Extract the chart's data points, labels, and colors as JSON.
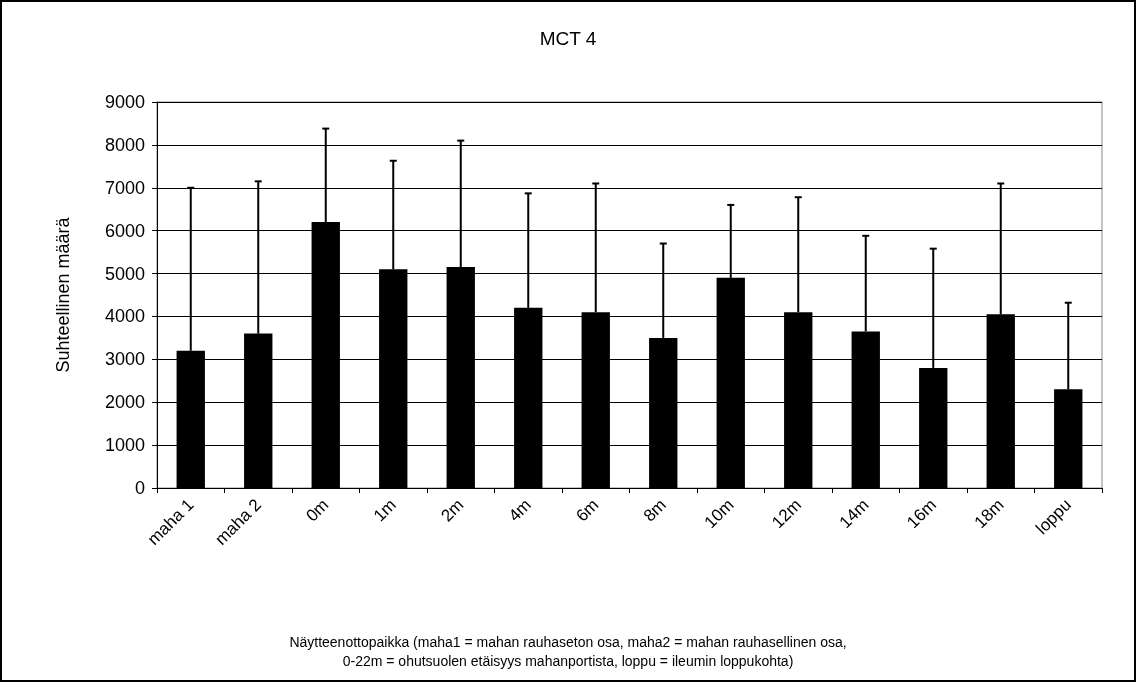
{
  "chart_data": {
    "type": "bar",
    "title": "MCT 4",
    "ylabel": "Suhteellinen määrä",
    "categories": [
      "maha 1",
      "maha 2",
      "0m",
      "1m",
      "2m",
      "4m",
      "6m",
      "8m",
      "10m",
      "12m",
      "14m",
      "16m",
      "18m",
      "loppu"
    ],
    "values": [
      3200,
      3600,
      6200,
      5100,
      5150,
      4200,
      4100,
      3500,
      4900,
      4100,
      3650,
      2800,
      4050,
      2300
    ],
    "errors": [
      [
        3200,
        7000
      ],
      [
        3600,
        7150
      ],
      [
        6200,
        8380
      ],
      [
        5100,
        7630
      ],
      [
        5150,
        8100
      ],
      [
        4200,
        6870
      ],
      [
        4100,
        7100
      ],
      [
        3500,
        5700
      ],
      [
        4900,
        6600
      ],
      [
        4100,
        6780
      ],
      [
        3650,
        5880
      ],
      [
        2800,
        5580
      ],
      [
        4050,
        7100
      ],
      [
        2300,
        4320
      ]
    ],
    "color": "#000000",
    "ylim": [
      0,
      9000
    ],
    "yticks": [
      0,
      1000,
      2000,
      3000,
      4000,
      5000,
      6000,
      7000,
      8000,
      9000
    ],
    "grid": "y",
    "annotations": [
      "Näytteenottopaikka (maha1 = mahan rauhaseton osa, maha2 = mahan rauhasellinen osa,\n0-22m = ohutsuolen etäisyys mahanportista, loppu = ileumin loppukohta)"
    ]
  }
}
